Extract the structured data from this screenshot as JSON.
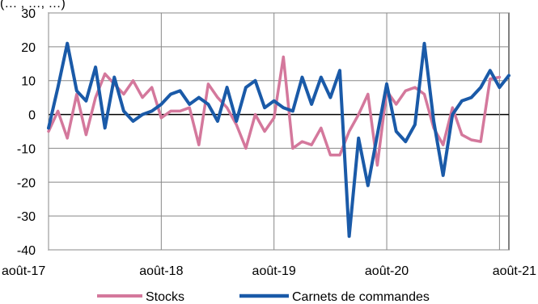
{
  "chart_data": {
    "type": "line",
    "header_partial": "(… , …, …)",
    "xlabel": "",
    "ylabel": "",
    "ylim": [
      -40,
      30
    ],
    "yticks": [
      -40,
      -30,
      -20,
      -10,
      0,
      10,
      20,
      30
    ],
    "x_tick_labels": [
      "août-17",
      "août-18",
      "août-19",
      "août-20",
      "août-21"
    ],
    "x_tick_index": [
      0,
      12,
      24,
      36,
      48
    ],
    "grid": true,
    "legend": "bottom",
    "series": [
      {
        "name": "Stocks",
        "color": "#d4789c",
        "values": [
          -5,
          1,
          -7,
          6,
          -6,
          5,
          12,
          9,
          6,
          10,
          5,
          8,
          -1,
          1,
          1,
          2,
          -9,
          9,
          5,
          2,
          -3,
          -10,
          0,
          -5,
          -1,
          17,
          -10,
          -8,
          -9,
          -4,
          -12,
          -12,
          -5,
          0,
          6,
          -15,
          7,
          3,
          7,
          8,
          6,
          -4,
          -9,
          2,
          -6,
          -7.5,
          -8,
          10.5
        ],
        "values_tail": [
          11
        ]
      },
      {
        "name": "Carnets de commandes",
        "color": "#1a5aa8",
        "values": [
          -4,
          8,
          21,
          7,
          4,
          14,
          -4,
          11,
          1,
          -2,
          0,
          1,
          3,
          6,
          7,
          3,
          5,
          3,
          -2,
          8,
          -2,
          8,
          10,
          2,
          4,
          2,
          1,
          11,
          3,
          11,
          5,
          13,
          -36,
          -7,
          -21,
          -6,
          9,
          -5,
          -8,
          -3,
          21,
          -2,
          -18,
          0,
          4,
          5,
          8,
          13,
          8,
          11.5
        ]
      }
    ]
  }
}
